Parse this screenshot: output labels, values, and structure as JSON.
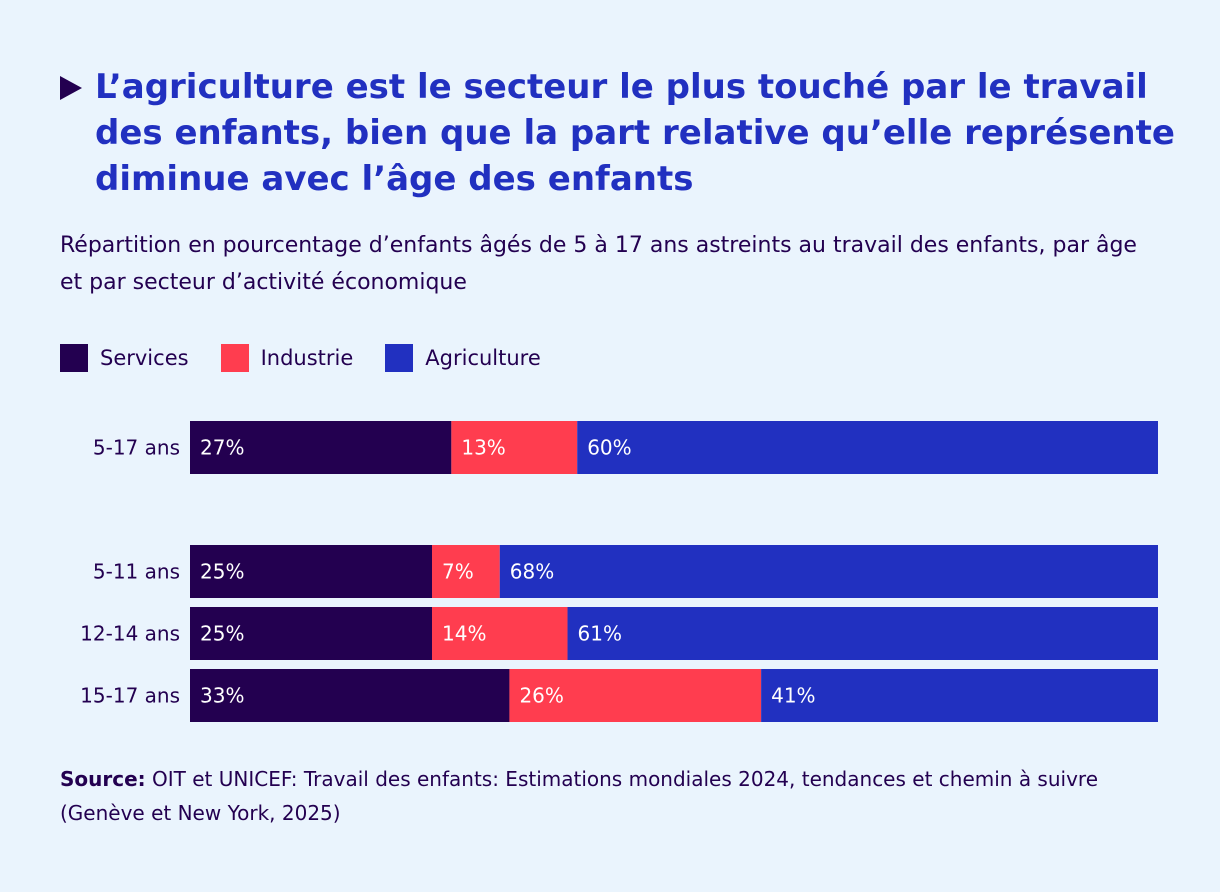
{
  "title": "L’agriculture est le secteur le plus touché par le travail des enfants, bien que la part relative qu’elle représente diminue avec l’âge des enfants",
  "subtitle": "Répartition en pourcentage d’enfants âgés de 5 à 17 ans astreints au travail des enfants, par âge et par secteur d’activité économique",
  "colors": {
    "services": "#230050",
    "industrie": "#ff3d4f",
    "agriculture": "#2130c0",
    "text": "#230050",
    "background": "#eaf4fd"
  },
  "chart_data": {
    "type": "bar",
    "orientation": "horizontal",
    "stacked": true,
    "categories": [
      "5-17 ans",
      "5-11 ans",
      "12-14 ans",
      "15-17 ans"
    ],
    "series": [
      {
        "name": "Services",
        "values": [
          27,
          25,
          25,
          33
        ],
        "labels": [
          "27%",
          "25%",
          "25%",
          "33%"
        ]
      },
      {
        "name": "Industrie",
        "values": [
          13,
          7,
          14,
          26
        ],
        "labels": [
          "13%",
          "7%",
          "14%",
          "26%"
        ]
      },
      {
        "name": "Agriculture",
        "values": [
          60,
          68,
          61,
          41
        ],
        "labels": [
          "60%",
          "68%",
          "61%",
          "41%"
        ]
      }
    ],
    "xlim": [
      0,
      100
    ],
    "legend": "top-left",
    "grid": false
  },
  "source": {
    "label": "Source:",
    "text": "OIT et UNICEF: Travail des enfants: Estimations mondiales 2024, tendances et chemin à suivre (Genève et New York, 2025)"
  }
}
